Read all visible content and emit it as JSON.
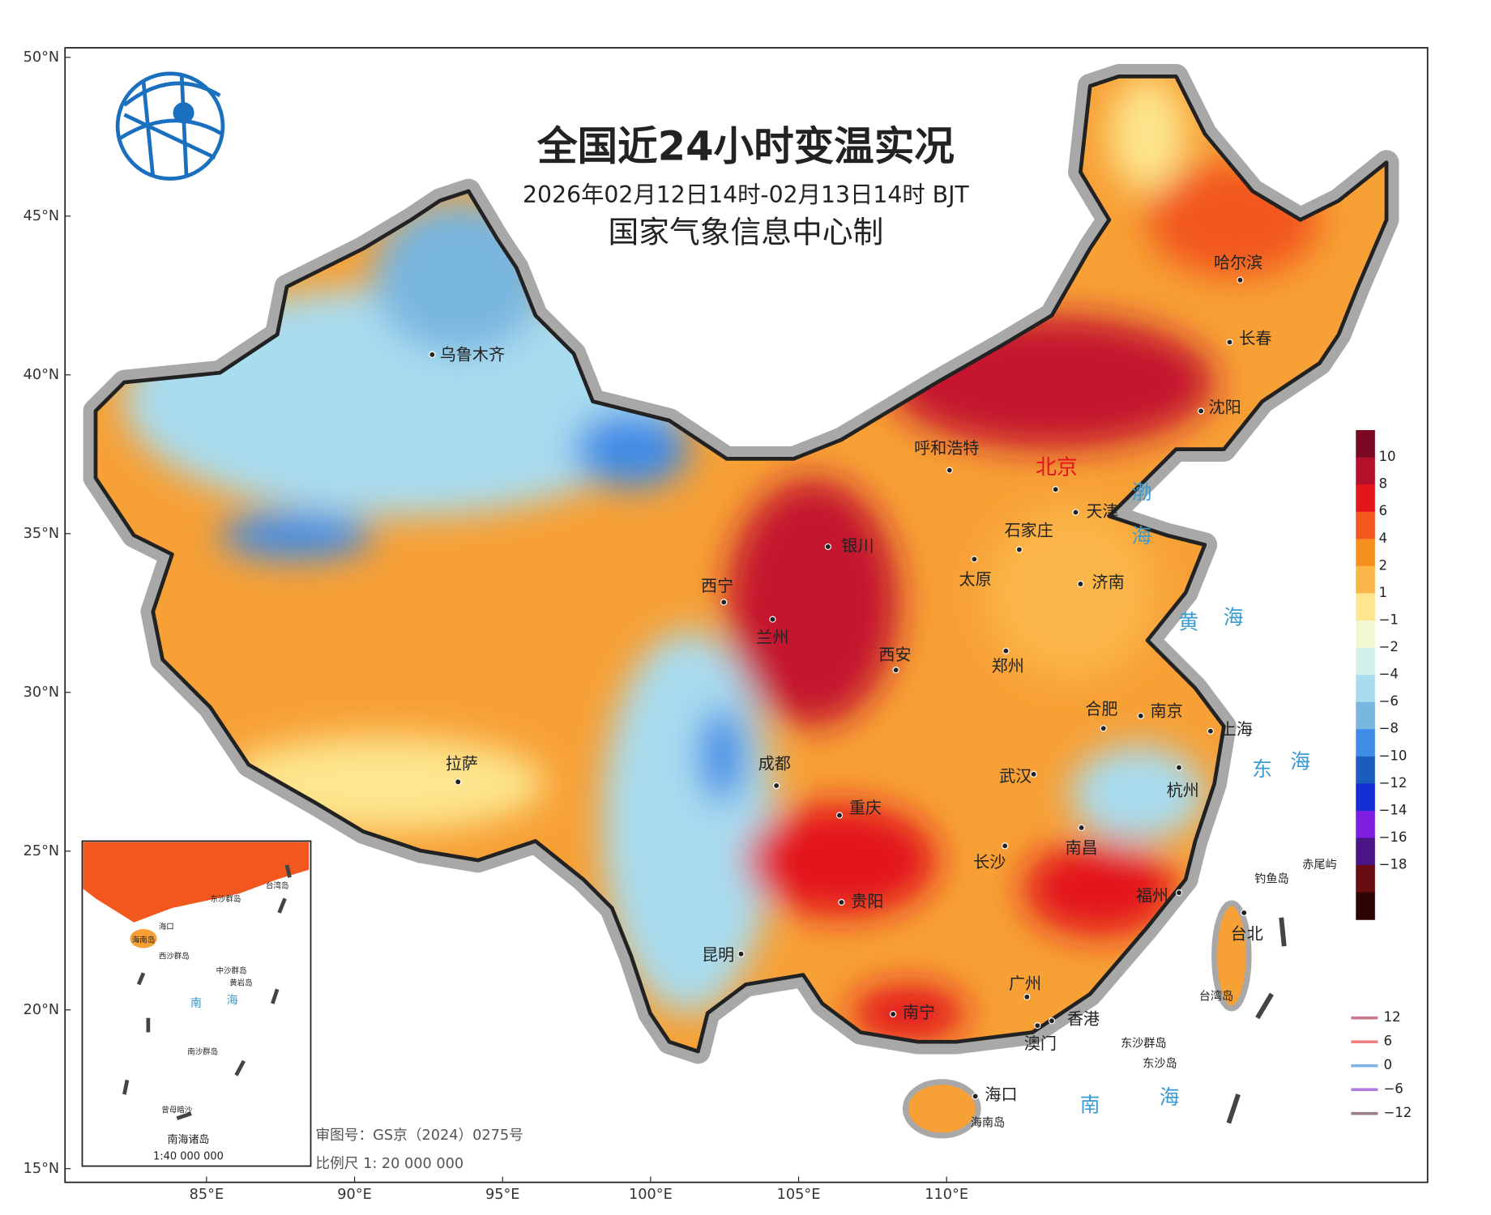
{
  "header": {
    "title": "全国近24小时变温实况",
    "period": "2026年02月12日14时-02月13日14时 BJT",
    "producer": "国家气象信息中心制"
  },
  "axes": {
    "latitude": [
      "50°N",
      "45°N",
      "40°N",
      "35°N",
      "30°N",
      "25°N",
      "20°N",
      "15°N"
    ],
    "longitude": [
      "85°E",
      "90°E",
      "95°E",
      "100°E",
      "105°E",
      "110°E"
    ]
  },
  "cities": [
    "乌鲁木齐",
    "呼和浩特",
    "北京",
    "天津",
    "石家庄",
    "银川",
    "太原",
    "济南",
    "西宁",
    "兰州",
    "郑州",
    "西安",
    "合肥",
    "南京",
    "上海",
    "拉萨",
    "成都",
    "武汉",
    "杭州",
    "重庆",
    "南昌",
    "长沙",
    "贵阳",
    "福州",
    "台北",
    "昆明",
    "广州",
    "南宁",
    "香港",
    "澳门",
    "海口",
    "哈尔滨",
    "长春",
    "沈阳"
  ],
  "sea_labels": [
    "渤",
    "海",
    "黄",
    "海",
    "东",
    "海",
    "南",
    "海"
  ],
  "islands": [
    "钓鱼岛",
    "赤尾屿",
    "台湾岛",
    "东沙群岛",
    "东沙岛",
    "海南岛"
  ],
  "inset": {
    "labels": [
      "台湾岛",
      "东沙群岛",
      "海口",
      "海南岛",
      "西沙群岛",
      "中沙群岛",
      "黄岩岛",
      "南",
      "海",
      "南沙群岛",
      "曾母暗沙"
    ],
    "title": "南海诸岛",
    "scale": "1:40 000 000"
  },
  "legend": {
    "colors": [
      "#7a0a24",
      "#b3102c",
      "#e3161c",
      "#f2571d",
      "#f78f1e",
      "#fbb64a",
      "#fde68e",
      "#f4f8d2",
      "#d3f0ea",
      "#a9dcef",
      "#79b6e0",
      "#3f8ce6",
      "#1d5cbf",
      "#1230d6",
      "#7d1ee0",
      "#4a1585",
      "#6a0d12",
      "#2e0404"
    ],
    "labels": [
      "10",
      "8",
      "6",
      "4",
      "2",
      "1",
      "−1",
      "−2",
      "−4",
      "−6",
      "−8",
      "−10",
      "−12",
      "−14",
      "−16",
      "−18"
    ],
    "contours": [
      {
        "label": "12",
        "color": "#c97b8d"
      },
      {
        "label": "6",
        "color": "#f07f7f"
      },
      {
        "label": "0",
        "color": "#7fb2e8"
      },
      {
        "label": "−6",
        "color": "#b17de0"
      },
      {
        "label": "−12",
        "color": "#9a8086"
      }
    ]
  },
  "footer": {
    "approval": "审图号：GS京（2024）0275号",
    "scale": "比例尺 1: 20 000 000"
  }
}
